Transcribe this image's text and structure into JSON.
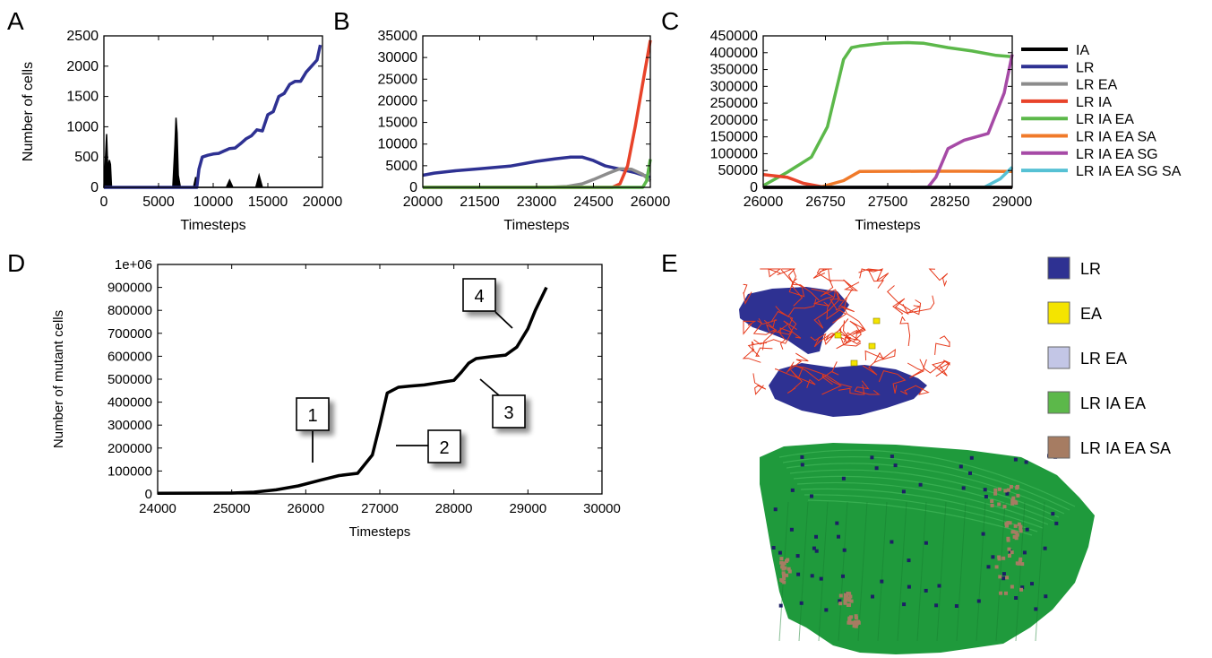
{
  "colors": {
    "IA": "#000000",
    "LR": "#2e3192",
    "LR EA": "#8c8c8c",
    "LR IA": "#e8432a",
    "LR IA EA": "#5cb84a",
    "LR IA EA SA": "#f07a2a",
    "LR IA EA SG": "#a64aa6",
    "LR IA EA SG SA": "#56c1d4",
    "brown": "#a67c62",
    "light_blue": "#c3c6e6",
    "yellow": "#f4e400",
    "red_network": "#e63a1c",
    "green_mass": "#1f9a3c"
  },
  "panels": {
    "A": "A",
    "B": "B",
    "C": "C",
    "D": "D",
    "E": "E"
  },
  "legend_c": [
    "IA",
    "LR",
    "LR EA",
    "LR IA",
    "LR IA EA",
    "LR IA EA SA",
    "LR IA EA SG",
    "LR IA EA SG SA"
  ],
  "legend_e": [
    {
      "label": "LR",
      "color": "#2e3192"
    },
    {
      "label": "EA",
      "color": "#f4e400"
    },
    {
      "label": "LR EA",
      "color": "#c3c6e6"
    },
    {
      "label": "LR IA EA",
      "color": "#5cb84a"
    },
    {
      "label": "LR IA EA SA",
      "color": "#a67c62"
    }
  ],
  "chart_data": [
    {
      "panel": "A",
      "type": "line",
      "xlabel": "Timesteps",
      "ylabel": "Number of cells",
      "xlim": [
        0,
        20000
      ],
      "ylim": [
        0,
        2500
      ],
      "xticks": [
        "0",
        "5000",
        "10000",
        "15000",
        "20000"
      ],
      "yticks": [
        "0",
        "500",
        "1000",
        "1500",
        "2000",
        "2500"
      ],
      "series": [
        {
          "name": "IA",
          "type": "area",
          "x": [
            0,
            150,
            250,
            350,
            500,
            600,
            700,
            800,
            900,
            1000,
            6300,
            6500,
            6600,
            6700,
            6800,
            7000,
            8200,
            8400,
            8600,
            11200,
            11500,
            11800,
            13900,
            14200,
            14500,
            20000
          ],
          "values": [
            0,
            500,
            880,
            300,
            450,
            380,
            0,
            0,
            0,
            0,
            0,
            700,
            1150,
            900,
            200,
            0,
            0,
            170,
            0,
            0,
            120,
            0,
            0,
            200,
            0,
            0
          ]
        },
        {
          "name": "LR",
          "x": [
            0,
            8500,
            8700,
            9000,
            9500,
            10000,
            10500,
            11000,
            11500,
            12000,
            12500,
            13000,
            13500,
            14000,
            14500,
            15000,
            15500,
            16000,
            16500,
            17000,
            17500,
            18000,
            18500,
            19000,
            19500,
            19800
          ],
          "values": [
            0,
            0,
            300,
            500,
            530,
            550,
            560,
            600,
            640,
            650,
            720,
            800,
            850,
            950,
            930,
            1200,
            1250,
            1500,
            1550,
            1700,
            1750,
            1750,
            1900,
            2000,
            2100,
            2350
          ]
        }
      ]
    },
    {
      "panel": "B",
      "type": "line",
      "xlabel": "Timesteps",
      "xlim": [
        20000,
        26000
      ],
      "ylim": [
        0,
        35000
      ],
      "xticks": [
        "20000",
        "21500",
        "23000",
        "24500",
        "26000"
      ],
      "yticks": [
        "0",
        "5000",
        "10000",
        "15000",
        "20000",
        "25000",
        "30000",
        "35000"
      ],
      "series": [
        {
          "name": "LR",
          "x": [
            20000,
            20300,
            20800,
            21500,
            22300,
            23000,
            23500,
            23900,
            24200,
            24500,
            24800,
            25200,
            25600,
            26000
          ],
          "values": [
            2800,
            3300,
            3800,
            4300,
            4900,
            6000,
            6600,
            7000,
            7000,
            6200,
            5000,
            4200,
            3400,
            2300
          ]
        },
        {
          "name": "LR EA",
          "x": [
            20000,
            23300,
            23800,
            24200,
            24500,
            24900,
            25200,
            25500,
            25800,
            26000
          ],
          "values": [
            0,
            0,
            200,
            800,
            1800,
            3300,
            4300,
            4200,
            3000,
            1500
          ]
        },
        {
          "name": "LR IA",
          "x": [
            20000,
            25000,
            25200,
            25400,
            25600,
            25800,
            26000
          ],
          "values": [
            0,
            0,
            800,
            5000,
            14000,
            24000,
            34000
          ]
        },
        {
          "name": "LR IA EA",
          "x": [
            20000,
            25800,
            25900,
            26000
          ],
          "values": [
            0,
            0,
            1500,
            6500
          ]
        }
      ]
    },
    {
      "panel": "C",
      "type": "line",
      "xlabel": "Timesteps",
      "xlim": [
        26000,
        29100
      ],
      "ylim": [
        0,
        450000
      ],
      "xticks": [
        "26000",
        "26750",
        "27500",
        "28250",
        "29000"
      ],
      "yticks": [
        "0",
        "50000",
        "100000",
        "150000",
        "200000",
        "250000",
        "300000",
        "350000",
        "400000",
        "450000"
      ],
      "series": [
        {
          "name": "LR IA EA",
          "x": [
            26000,
            26300,
            26600,
            26800,
            27000,
            27100,
            27200,
            27500,
            27800,
            28000,
            28300,
            28600,
            28900,
            29100
          ],
          "values": [
            5000,
            45000,
            90000,
            180000,
            380000,
            415000,
            420000,
            428000,
            430000,
            428000,
            415000,
            405000,
            392000,
            388000
          ]
        },
        {
          "name": "LR IA",
          "x": [
            26000,
            26300,
            26500,
            26700,
            26800,
            29100
          ],
          "values": [
            38000,
            30000,
            12000,
            3000,
            0,
            0
          ]
        },
        {
          "name": "LR IA EA SA",
          "x": [
            26000,
            26700,
            27000,
            27200,
            28000,
            28600,
            29100
          ],
          "values": [
            0,
            0,
            20000,
            47000,
            48000,
            48000,
            47000
          ]
        },
        {
          "name": "LR IA EA SG",
          "x": [
            26000,
            28050,
            28150,
            28300,
            28500,
            28800,
            29000,
            29100
          ],
          "values": [
            0,
            0,
            30000,
            115000,
            140000,
            160000,
            280000,
            395000
          ]
        },
        {
          "name": "LR IA EA SG SA",
          "x": [
            26000,
            28750,
            28950,
            29100
          ],
          "values": [
            0,
            0,
            25000,
            60000
          ]
        },
        {
          "name": "LR EA",
          "x": [
            26000,
            29100
          ],
          "values": [
            0,
            0
          ]
        },
        {
          "name": "IA",
          "x": [
            26000,
            29100
          ],
          "values": [
            0,
            0
          ]
        }
      ]
    },
    {
      "panel": "D",
      "type": "line",
      "xlabel": "Timesteps",
      "ylabel": "Number of mutant cells",
      "xlim": [
        24000,
        30000
      ],
      "ylim": [
        0,
        1000000
      ],
      "xticks": [
        "24000",
        "25000",
        "26000",
        "27000",
        "28000",
        "29000",
        "30000"
      ],
      "yticks": [
        "0",
        "100000",
        "200000",
        "300000",
        "400000",
        "500000",
        "600000",
        "700000",
        "800000",
        "900000",
        "1e+06"
      ],
      "series": [
        {
          "name": "mutant",
          "x": [
            24000,
            25000,
            25300,
            25600,
            25900,
            26200,
            26450,
            26700,
            26900,
            27000,
            27100,
            27250,
            27400,
            27600,
            27800,
            28000,
            28100,
            28200,
            28300,
            28500,
            28700,
            28850,
            29000,
            29100,
            29250
          ],
          "values": [
            3000,
            4000,
            8000,
            18000,
            35000,
            60000,
            80000,
            90000,
            170000,
            300000,
            440000,
            465000,
            470000,
            475000,
            485000,
            495000,
            530000,
            570000,
            590000,
            598000,
            605000,
            640000,
            720000,
            800000,
            900000
          ]
        }
      ],
      "annotations": [
        "1",
        "2",
        "3",
        "4"
      ]
    }
  ]
}
